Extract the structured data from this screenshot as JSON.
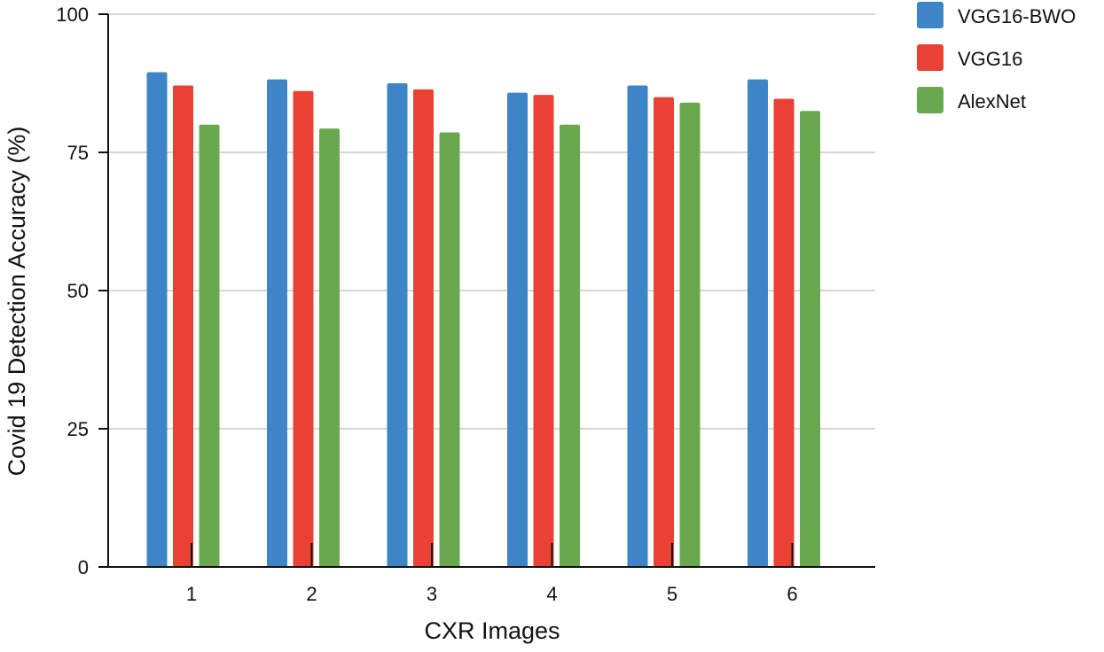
{
  "chart_data": {
    "type": "bar",
    "title": "",
    "xlabel": "CXR Images",
    "ylabel": "Covid 19 Detection Accuracy (%)",
    "categories": [
      "1",
      "2",
      "3",
      "4",
      "5",
      "6"
    ],
    "ylim": [
      0,
      100
    ],
    "yticks": [
      "0",
      "25",
      "50",
      "75",
      "100"
    ],
    "grid": true,
    "legend_position": "top-right",
    "series": [
      {
        "name": "VGG16-BWO",
        "color": "#3d85c6",
        "values": [
          89.5,
          88.2,
          87.5,
          85.8,
          87.1,
          88.2
        ]
      },
      {
        "name": "VGG16",
        "color": "#e94235",
        "values": [
          87.1,
          86.1,
          86.4,
          85.4,
          85.0,
          84.7
        ]
      },
      {
        "name": "AlexNet",
        "color": "#6aa84f",
        "values": [
          80.0,
          79.3,
          78.6,
          80.0,
          84.0,
          82.5
        ]
      }
    ]
  }
}
